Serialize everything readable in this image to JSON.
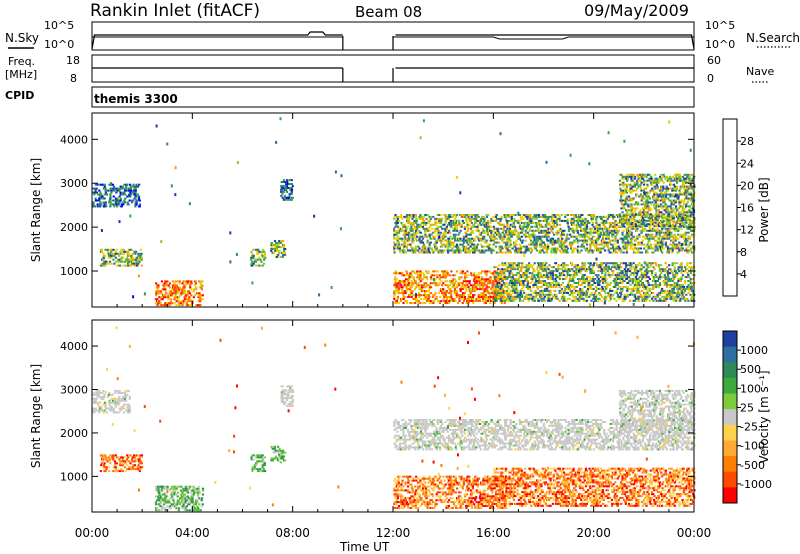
{
  "header": {
    "title": "Rankin Inlet (fitACF)",
    "beam": "Beam 08",
    "date": "09/May/2009"
  },
  "labels": {
    "nsky": "N.Sky",
    "nsearch": "N.Search",
    "freq_line1": "Freq.",
    "freq_line2": "[MHz]",
    "nave": "Nave",
    "cpid": "CPID",
    "cpid_value": "themis 3300",
    "xaxis": "Time UT",
    "power_colorbar": "Power [dB]",
    "velocity_colorbar": "Velocity [m s⁻¹]"
  },
  "strip_ticks": {
    "nsky_left": [
      "10^5",
      "10^0"
    ],
    "nsearch_right": [
      "10^5",
      "10^0"
    ],
    "freq_left": [
      "18",
      "8"
    ],
    "nave_right": [
      "60",
      "0"
    ]
  },
  "colorbars": {
    "power": {
      "ticks": [
        "4",
        "8",
        "12",
        "16",
        "20",
        "24",
        "28"
      ],
      "colors": [
        "#0000ff",
        "#1a3d9a",
        "#2e6b9e",
        "#2f8f5a",
        "#3aa640",
        "#8cc63f",
        "#c8d400",
        "#ffcc00",
        "#ff9900",
        "#ff6600",
        "#ff3300",
        "#ff0000"
      ]
    },
    "velocity": {
      "ticks": [
        "1000",
        "500",
        "100",
        "25",
        "-25",
        "-100",
        "-500",
        "-1000"
      ],
      "colors": [
        "#1f3fa0",
        "#2f6fa0",
        "#2e8b57",
        "#3daa3d",
        "#7acc3a",
        "#c8c8c8",
        "#ffd24d",
        "#ffaa33",
        "#ff8000",
        "#ff4a00",
        "#ff0000"
      ]
    }
  },
  "chart_data": [
    {
      "type": "heatmap",
      "title": "Power",
      "xlabel": "Time UT",
      "ylabel": "Slant Range [km]",
      "x_ticks": [
        "00:00",
        "04:00",
        "08:00",
        "12:00",
        "16:00",
        "20:00",
        "00:00"
      ],
      "y_ticks": [
        1000,
        2000,
        3000,
        4000
      ],
      "ylim": [
        180,
        4600
      ],
      "xlim_hours": [
        0,
        24
      ],
      "data_gap_hours": [
        10,
        12
      ],
      "colorbar_label": "Power [dB]",
      "colorbar_ticks": [
        4,
        8,
        12,
        16,
        20,
        24,
        28
      ],
      "echo_regions": [
        {
          "t_start": 0.0,
          "t_end": 1.9,
          "r_min": 2450,
          "r_max": 3000,
          "level": "low"
        },
        {
          "t_start": 0.3,
          "t_end": 2.0,
          "r_min": 1100,
          "r_max": 1500,
          "level": "medium"
        },
        {
          "t_start": 2.5,
          "t_end": 4.4,
          "r_min": 200,
          "r_max": 800,
          "level": "high"
        },
        {
          "t_start": 6.3,
          "t_end": 6.9,
          "r_min": 1100,
          "r_max": 1500,
          "level": "medium"
        },
        {
          "t_start": 7.1,
          "t_end": 7.7,
          "r_min": 1300,
          "r_max": 1700,
          "level": "medium"
        },
        {
          "t_start": 7.5,
          "t_end": 8.0,
          "r_min": 2600,
          "r_max": 3100,
          "level": "low"
        },
        {
          "t_start": 12.0,
          "t_end": 16.5,
          "r_min": 250,
          "r_max": 1000,
          "level": "high"
        },
        {
          "t_start": 12.0,
          "t_end": 24.0,
          "r_min": 1400,
          "r_max": 2300,
          "level": "medium"
        },
        {
          "t_start": 16.0,
          "t_end": 24.0,
          "r_min": 300,
          "r_max": 1200,
          "level": "medium"
        },
        {
          "t_start": 21.0,
          "t_end": 24.0,
          "r_min": 2000,
          "r_max": 3200,
          "level": "medium"
        }
      ]
    },
    {
      "type": "heatmap",
      "title": "Velocity",
      "xlabel": "Time UT",
      "ylabel": "Slant Range [km]",
      "x_ticks": [
        "00:00",
        "04:00",
        "08:00",
        "12:00",
        "16:00",
        "20:00",
        "00:00"
      ],
      "y_ticks": [
        1000,
        2000,
        3000,
        4000
      ],
      "ylim": [
        180,
        4600
      ],
      "xlim_hours": [
        0,
        24
      ],
      "data_gap_hours": [
        10,
        12
      ],
      "colorbar_label": "Velocity [m s⁻¹]",
      "colorbar_ticks": [
        1000,
        500,
        100,
        25,
        -25,
        -100,
        -500,
        -1000
      ],
      "echo_regions": [
        {
          "t_start": 0.0,
          "t_end": 1.5,
          "r_min": 2450,
          "r_max": 3000,
          "level": "ground"
        },
        {
          "t_start": 0.3,
          "t_end": 2.0,
          "r_min": 1100,
          "r_max": 1500,
          "level": "away"
        },
        {
          "t_start": 2.5,
          "t_end": 4.4,
          "r_min": 200,
          "r_max": 800,
          "level": "toward"
        },
        {
          "t_start": 6.3,
          "t_end": 6.9,
          "r_min": 1100,
          "r_max": 1500,
          "level": "toward"
        },
        {
          "t_start": 7.1,
          "t_end": 7.7,
          "r_min": 1300,
          "r_max": 1700,
          "level": "toward"
        },
        {
          "t_start": 7.5,
          "t_end": 8.0,
          "r_min": 2600,
          "r_max": 3100,
          "level": "ground"
        },
        {
          "t_start": 12.0,
          "t_end": 16.5,
          "r_min": 250,
          "r_max": 1000,
          "level": "away"
        },
        {
          "t_start": 12.0,
          "t_end": 24.0,
          "r_min": 1600,
          "r_max": 2300,
          "level": "ground"
        },
        {
          "t_start": 16.0,
          "t_end": 24.0,
          "r_min": 300,
          "r_max": 1200,
          "level": "away"
        },
        {
          "t_start": 21.0,
          "t_end": 24.0,
          "r_min": 2000,
          "r_max": 3000,
          "level": "ground"
        }
      ]
    }
  ]
}
